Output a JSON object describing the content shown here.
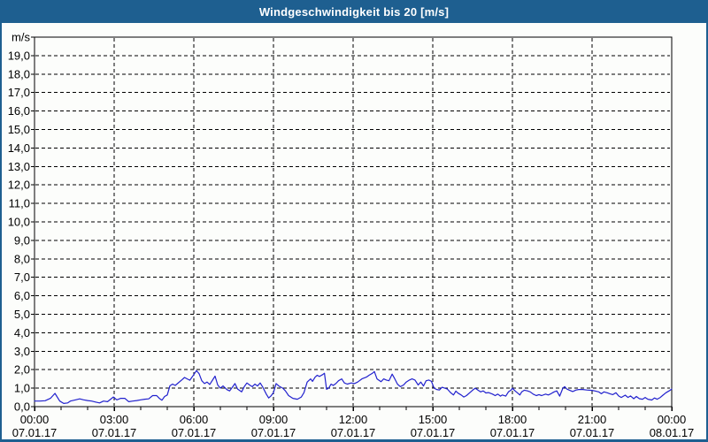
{
  "window": {
    "title": "Windgeschwindigkeit bis 20 [m/s]"
  },
  "colors": {
    "title_bar_bg": "#1E5F90",
    "window_border": "#1E5F90",
    "chart_bg": "#FCFDFB",
    "plot_border": "#000000",
    "grid": "#000000",
    "axis_text": "#000000",
    "title_text": "#FFFFFF",
    "series_line": "#2121CE"
  },
  "chart_data": {
    "type": "line",
    "title": "Windgeschwindigkeit bis 20 [m/s]",
    "ylabel_unit": "m/s",
    "ylim": [
      0,
      20
    ],
    "xlim_hours": [
      0,
      24
    ],
    "grid_style": "dashed",
    "legend": "none",
    "y_ticks": {
      "step": 1,
      "labels": [
        "0,0",
        "1,0",
        "2,0",
        "3,0",
        "4,0",
        "5,0",
        "6,0",
        "7,0",
        "8,0",
        "9,0",
        "10,0",
        "11,0",
        "12,0",
        "13,0",
        "14,0",
        "15,0",
        "16,0",
        "17,0",
        "18,0",
        "19,0"
      ]
    },
    "x_ticks": {
      "minor_step_hours": 1,
      "major": [
        {
          "hour": 0,
          "time": "00:00",
          "date": "07.01.17"
        },
        {
          "hour": 3,
          "time": "03:00",
          "date": "07.01.17"
        },
        {
          "hour": 6,
          "time": "06:00",
          "date": "07.01.17"
        },
        {
          "hour": 9,
          "time": "09:00",
          "date": "07.01.17"
        },
        {
          "hour": 12,
          "time": "12:00",
          "date": "07.01.17"
        },
        {
          "hour": 15,
          "time": "15:00",
          "date": "07.01.17"
        },
        {
          "hour": 18,
          "time": "18:00",
          "date": "07.01.17"
        },
        {
          "hour": 21,
          "time": "21:00",
          "date": "07.01.17"
        },
        {
          "hour": 24,
          "time": "00:00",
          "date": "08.01.17"
        }
      ]
    },
    "series": [
      {
        "name": "Windgeschwindigkeit",
        "unit": "m/s",
        "points_hour_value": [
          [
            0.0,
            0.3
          ],
          [
            0.2,
            0.3
          ],
          [
            0.4,
            0.32
          ],
          [
            0.6,
            0.45
          ],
          [
            0.77,
            0.72
          ],
          [
            0.95,
            0.3
          ],
          [
            1.1,
            0.17
          ],
          [
            1.25,
            0.2
          ],
          [
            1.35,
            0.3
          ],
          [
            1.55,
            0.37
          ],
          [
            1.7,
            0.42
          ],
          [
            1.85,
            0.37
          ],
          [
            2.0,
            0.33
          ],
          [
            2.15,
            0.3
          ],
          [
            2.3,
            0.25
          ],
          [
            2.45,
            0.2
          ],
          [
            2.6,
            0.3
          ],
          [
            2.75,
            0.27
          ],
          [
            2.97,
            0.52
          ],
          [
            3.1,
            0.37
          ],
          [
            3.25,
            0.45
          ],
          [
            3.4,
            0.45
          ],
          [
            3.55,
            0.27
          ],
          [
            3.7,
            0.3
          ],
          [
            3.85,
            0.33
          ],
          [
            4.0,
            0.37
          ],
          [
            4.15,
            0.4
          ],
          [
            4.3,
            0.42
          ],
          [
            4.45,
            0.6
          ],
          [
            4.6,
            0.6
          ],
          [
            4.7,
            0.45
          ],
          [
            4.8,
            0.35
          ],
          [
            4.9,
            0.55
          ],
          [
            5.0,
            0.63
          ],
          [
            5.1,
            1.13
          ],
          [
            5.2,
            1.22
          ],
          [
            5.3,
            1.15
          ],
          [
            5.4,
            1.27
          ],
          [
            5.55,
            1.45
          ],
          [
            5.65,
            1.58
          ],
          [
            5.75,
            1.5
          ],
          [
            5.85,
            1.43
          ],
          [
            5.95,
            1.63
          ],
          [
            6.1,
            1.95
          ],
          [
            6.2,
            1.78
          ],
          [
            6.3,
            1.4
          ],
          [
            6.4,
            1.25
          ],
          [
            6.5,
            1.33
          ],
          [
            6.6,
            1.2
          ],
          [
            6.8,
            1.65
          ],
          [
            6.9,
            1.17
          ],
          [
            7.0,
            1.0
          ],
          [
            7.1,
            1.12
          ],
          [
            7.25,
            0.92
          ],
          [
            7.35,
            0.85
          ],
          [
            7.45,
            1.05
          ],
          [
            7.55,
            1.25
          ],
          [
            7.65,
            0.95
          ],
          [
            7.8,
            0.8
          ],
          [
            7.9,
            1.08
          ],
          [
            8.0,
            1.28
          ],
          [
            8.1,
            1.17
          ],
          [
            8.2,
            1.08
          ],
          [
            8.3,
            1.22
          ],
          [
            8.4,
            1.12
          ],
          [
            8.5,
            1.28
          ],
          [
            8.6,
            1.05
          ],
          [
            8.73,
            0.68
          ],
          [
            8.82,
            0.47
          ],
          [
            8.9,
            0.57
          ],
          [
            9.0,
            0.76
          ],
          [
            9.1,
            1.25
          ],
          [
            9.2,
            1.12
          ],
          [
            9.35,
            1.0
          ],
          [
            9.45,
            0.85
          ],
          [
            9.57,
            0.6
          ],
          [
            9.73,
            0.45
          ],
          [
            9.9,
            0.4
          ],
          [
            10.05,
            0.52
          ],
          [
            10.15,
            0.76
          ],
          [
            10.27,
            1.33
          ],
          [
            10.4,
            1.5
          ],
          [
            10.47,
            1.37
          ],
          [
            10.57,
            1.6
          ],
          [
            10.65,
            1.7
          ],
          [
            10.73,
            1.63
          ],
          [
            10.85,
            1.73
          ],
          [
            10.92,
            1.81
          ],
          [
            11.0,
            0.94
          ],
          [
            11.08,
            1.0
          ],
          [
            11.17,
            1.22
          ],
          [
            11.25,
            1.15
          ],
          [
            11.35,
            1.25
          ],
          [
            11.45,
            1.4
          ],
          [
            11.57,
            1.5
          ],
          [
            11.67,
            1.28
          ],
          [
            11.78,
            1.22
          ],
          [
            11.93,
            1.28
          ],
          [
            12.05,
            1.25
          ],
          [
            12.17,
            1.33
          ],
          [
            12.33,
            1.5
          ],
          [
            12.5,
            1.6
          ],
          [
            12.6,
            1.7
          ],
          [
            12.72,
            1.8
          ],
          [
            12.8,
            1.9
          ],
          [
            12.9,
            1.5
          ],
          [
            13.05,
            1.35
          ],
          [
            13.15,
            1.5
          ],
          [
            13.25,
            1.44
          ],
          [
            13.35,
            1.4
          ],
          [
            13.47,
            1.76
          ],
          [
            13.57,
            1.5
          ],
          [
            13.67,
            1.22
          ],
          [
            13.78,
            1.08
          ],
          [
            13.9,
            1.17
          ],
          [
            14.0,
            1.33
          ],
          [
            14.12,
            1.44
          ],
          [
            14.22,
            1.5
          ],
          [
            14.33,
            1.44
          ],
          [
            14.45,
            1.17
          ],
          [
            14.55,
            1.33
          ],
          [
            14.65,
            1.12
          ],
          [
            14.75,
            1.4
          ],
          [
            14.85,
            1.44
          ],
          [
            14.95,
            1.37
          ],
          [
            15.05,
            1.0
          ],
          [
            15.15,
            0.93
          ],
          [
            15.25,
            0.9
          ],
          [
            15.35,
            1.05
          ],
          [
            15.45,
            1.0
          ],
          [
            15.55,
            0.95
          ],
          [
            15.67,
            0.76
          ],
          [
            15.78,
            0.63
          ],
          [
            15.87,
            0.84
          ],
          [
            15.95,
            0.73
          ],
          [
            16.07,
            0.63
          ],
          [
            16.17,
            0.52
          ],
          [
            16.27,
            0.6
          ],
          [
            16.4,
            0.76
          ],
          [
            16.5,
            0.89
          ],
          [
            16.6,
            1.0
          ],
          [
            16.7,
            0.9
          ],
          [
            16.8,
            0.8
          ],
          [
            16.9,
            0.85
          ],
          [
            17.0,
            0.74
          ],
          [
            17.1,
            0.76
          ],
          [
            17.25,
            0.68
          ],
          [
            17.35,
            0.6
          ],
          [
            17.45,
            0.68
          ],
          [
            17.55,
            0.57
          ],
          [
            17.62,
            0.63
          ],
          [
            17.75,
            0.57
          ],
          [
            17.85,
            0.8
          ],
          [
            17.95,
            0.9
          ],
          [
            18.0,
            1.0
          ],
          [
            18.1,
            0.85
          ],
          [
            18.2,
            0.73
          ],
          [
            18.28,
            0.63
          ],
          [
            18.35,
            0.8
          ],
          [
            18.45,
            0.89
          ],
          [
            18.57,
            0.85
          ],
          [
            18.67,
            0.8
          ],
          [
            18.78,
            0.68
          ],
          [
            18.9,
            0.6
          ],
          [
            19.0,
            0.65
          ],
          [
            19.1,
            0.6
          ],
          [
            19.25,
            0.68
          ],
          [
            19.35,
            0.63
          ],
          [
            19.45,
            0.7
          ],
          [
            19.57,
            0.8
          ],
          [
            19.67,
            0.85
          ],
          [
            19.78,
            0.57
          ],
          [
            19.9,
            1.0
          ],
          [
            19.97,
            1.08
          ],
          [
            20.05,
            0.95
          ],
          [
            20.15,
            0.89
          ],
          [
            20.27,
            0.82
          ],
          [
            20.4,
            0.9
          ],
          [
            20.5,
            0.93
          ],
          [
            20.65,
            0.93
          ],
          [
            20.8,
            0.9
          ],
          [
            21.0,
            0.88
          ],
          [
            21.1,
            0.85
          ],
          [
            21.25,
            0.8
          ],
          [
            21.35,
            0.7
          ],
          [
            21.45,
            0.8
          ],
          [
            21.57,
            0.75
          ],
          [
            21.67,
            0.7
          ],
          [
            21.78,
            0.65
          ],
          [
            21.9,
            0.75
          ],
          [
            22.0,
            0.58
          ],
          [
            22.1,
            0.5
          ],
          [
            22.25,
            0.62
          ],
          [
            22.35,
            0.5
          ],
          [
            22.45,
            0.58
          ],
          [
            22.57,
            0.43
          ],
          [
            22.67,
            0.55
          ],
          [
            22.78,
            0.43
          ],
          [
            22.9,
            0.4
          ],
          [
            23.0,
            0.5
          ],
          [
            23.1,
            0.4
          ],
          [
            23.25,
            0.36
          ],
          [
            23.35,
            0.47
          ],
          [
            23.45,
            0.4
          ],
          [
            23.57,
            0.5
          ],
          [
            23.67,
            0.62
          ],
          [
            23.78,
            0.75
          ],
          [
            23.9,
            0.85
          ],
          [
            24.0,
            0.95
          ]
        ]
      }
    ]
  }
}
